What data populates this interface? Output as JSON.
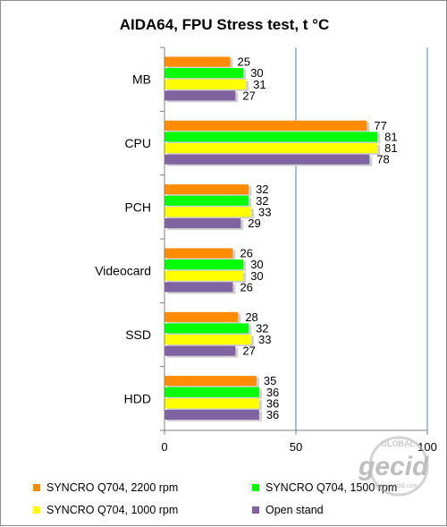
{
  "chart_data": {
    "type": "bar",
    "orientation": "horizontal",
    "title": "AIDA64, FPU Stress test, t °C",
    "xlabel": "",
    "ylabel": "",
    "xlim": [
      0,
      100
    ],
    "x_ticks": [
      "0",
      "50",
      "100"
    ],
    "grid": true,
    "legend_position": "bottom",
    "categories": [
      "MB",
      "CPU",
      "PCH",
      "Videocard",
      "SSD",
      "HDD"
    ],
    "series": [
      {
        "name": "SYNCRO Q704, 2200 rpm",
        "color": "#ff8c00",
        "values": [
          25,
          77,
          32,
          26,
          28,
          35
        ],
        "labels": [
          "25",
          "77",
          "32",
          "26",
          "28",
          "35"
        ]
      },
      {
        "name": "SYNCRO Q704, 1500 rpm",
        "color": "#00ff00",
        "values": [
          30,
          81,
          32,
          30,
          32,
          36
        ],
        "labels": [
          "30",
          "81",
          "32",
          "30",
          "32",
          "36"
        ]
      },
      {
        "name": "SYNCRO Q704, 1000 rpm",
        "color": "#ffff00",
        "values": [
          31,
          81,
          33,
          30,
          33,
          36
        ],
        "labels": [
          "31",
          "81",
          "33",
          "30",
          "33",
          "36"
        ]
      },
      {
        "name": "Open stand",
        "color": "#8064a2",
        "values": [
          27,
          78,
          29,
          26,
          27,
          36
        ],
        "labels": [
          "27",
          "78",
          "29",
          "26",
          "27",
          "36"
        ]
      }
    ]
  },
  "watermark": {
    "text_top": "GLOBAL",
    "text_main": "gecid",
    "text_url": "www.gecid.com"
  }
}
